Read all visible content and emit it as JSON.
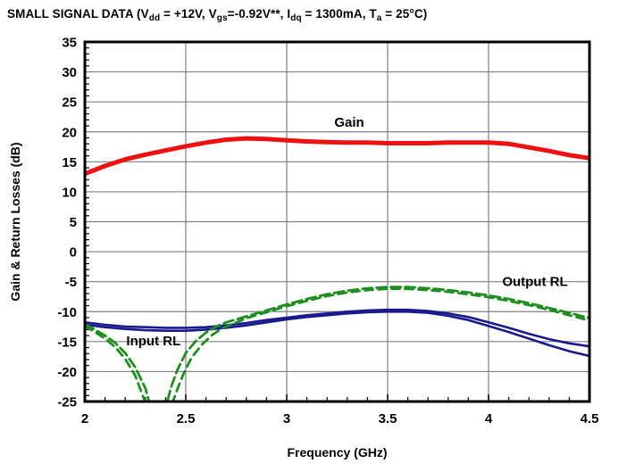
{
  "page": {
    "background": "#ffffff",
    "frame_color": "#000000",
    "grid_color": "#808080",
    "text_color": "#000000"
  },
  "title": {
    "segments": [
      {
        "t": "SMALL SIGNAL DATA (V"
      },
      {
        "t": "dd",
        "sub": true
      },
      {
        "t": " = +12V, V"
      },
      {
        "t": "gs",
        "sub": true
      },
      {
        "t": "=-0.92V**, I"
      },
      {
        "t": "dq",
        "sub": true
      },
      {
        "t": " = 1300mA, T"
      },
      {
        "t": "a",
        "sub": true
      },
      {
        "t": " = 25°C)"
      }
    ]
  },
  "chart_data": {
    "type": "line",
    "title": "SMALL SIGNAL DATA (Vdd = +12V, Vgs=-0.92V**, Idq = 1300mA, Ta = 25°C)",
    "xlabel": "Frequency (GHz)",
    "ylabel": "Gain & Return Losses (dB)",
    "xlim": [
      2,
      4.5
    ],
    "ylim": [
      -25,
      35
    ],
    "xticks": [
      2,
      2.5,
      3,
      3.5,
      4,
      4.5
    ],
    "xtick_labels": [
      "2",
      "2.5",
      "3",
      "3.5",
      "4",
      "4.5"
    ],
    "yticks": [
      35,
      30,
      25,
      20,
      15,
      10,
      5,
      0,
      -5,
      -10,
      -15,
      -20,
      -25
    ],
    "x_minor_step": 0.1,
    "y_minor_step": 1,
    "grid": true,
    "legend_position": "none",
    "series": [
      {
        "name": "Gain",
        "color": "#ee1111",
        "width": 5,
        "dash": null,
        "x": [
          2.0,
          2.1,
          2.2,
          2.3,
          2.4,
          2.5,
          2.6,
          2.7,
          2.8,
          2.9,
          3.0,
          3.1,
          3.2,
          3.3,
          3.4,
          3.5,
          3.6,
          3.7,
          3.8,
          3.9,
          4.0,
          4.1,
          4.2,
          4.3,
          4.4,
          4.5
        ],
        "y": [
          13.0,
          14.3,
          15.4,
          16.2,
          16.9,
          17.6,
          18.2,
          18.7,
          18.9,
          18.8,
          18.6,
          18.4,
          18.3,
          18.2,
          18.2,
          18.1,
          18.1,
          18.1,
          18.2,
          18.2,
          18.2,
          18.0,
          17.4,
          16.8,
          16.1,
          15.6
        ]
      },
      {
        "name": "Input RL (trace 1)",
        "color": "#1a1a8e",
        "width": 2.6,
        "dash": null,
        "x": [
          2.0,
          2.1,
          2.2,
          2.3,
          2.4,
          2.5,
          2.6,
          2.7,
          2.8,
          2.9,
          3.0,
          3.1,
          3.2,
          3.3,
          3.4,
          3.5,
          3.6,
          3.7,
          3.8,
          3.9,
          4.0,
          4.1,
          4.2,
          4.3,
          4.4,
          4.5
        ],
        "y": [
          -11.8,
          -12.2,
          -12.5,
          -12.6,
          -12.7,
          -12.7,
          -12.6,
          -12.3,
          -11.9,
          -11.4,
          -11.0,
          -10.6,
          -10.3,
          -10.0,
          -9.8,
          -9.7,
          -9.7,
          -9.9,
          -10.3,
          -10.9,
          -11.8,
          -12.7,
          -13.7,
          -14.6,
          -15.3,
          -15.8
        ]
      },
      {
        "name": "Input RL (trace 2)",
        "color": "#1a1a8e",
        "width": 2.6,
        "dash": null,
        "x": [
          2.0,
          2.1,
          2.2,
          2.3,
          2.4,
          2.5,
          2.6,
          2.7,
          2.8,
          2.9,
          3.0,
          3.1,
          3.2,
          3.3,
          3.4,
          3.5,
          3.6,
          3.7,
          3.8,
          3.9,
          4.0,
          4.1,
          4.2,
          4.3,
          4.4,
          4.5
        ],
        "y": [
          -12.2,
          -12.6,
          -12.9,
          -13.1,
          -13.2,
          -13.2,
          -13.0,
          -12.7,
          -12.3,
          -11.8,
          -11.3,
          -10.9,
          -10.6,
          -10.3,
          -10.1,
          -10.0,
          -10.0,
          -10.2,
          -10.7,
          -11.4,
          -12.4,
          -13.4,
          -14.5,
          -15.6,
          -16.6,
          -17.4
        ]
      },
      {
        "name": "Output RL (trace 1)",
        "color": "#1f8f1f",
        "width": 2.8,
        "dash": "11,5",
        "x": [
          2.0,
          2.05,
          2.1,
          2.15,
          2.2,
          2.25,
          2.3,
          2.33,
          2.36,
          2.4,
          2.43,
          2.46,
          2.5,
          2.55,
          2.6,
          2.65,
          2.7,
          2.8,
          2.9,
          3.0,
          3.1,
          3.2,
          3.3,
          3.4,
          3.5,
          3.6,
          3.7,
          3.8,
          3.9,
          4.0,
          4.1,
          4.2,
          4.3,
          4.4,
          4.5
        ],
        "y": [
          -12.1,
          -13.0,
          -14.0,
          -15.2,
          -16.9,
          -19.3,
          -22.8,
          -26.5,
          -29.0,
          -26.0,
          -22.3,
          -19.6,
          -16.9,
          -14.9,
          -13.5,
          -12.5,
          -11.8,
          -10.8,
          -9.8,
          -8.8,
          -7.9,
          -7.1,
          -6.5,
          -6.1,
          -5.9,
          -5.9,
          -6.1,
          -6.4,
          -6.8,
          -7.3,
          -7.9,
          -8.6,
          -9.4,
          -10.2,
          -11.1
        ]
      },
      {
        "name": "Output RL (trace 2)",
        "color": "#1f8f1f",
        "width": 2.8,
        "dash": "9,6",
        "x": [
          2.0,
          2.05,
          2.1,
          2.15,
          2.2,
          2.25,
          2.3,
          2.34,
          2.38,
          2.42,
          2.46,
          2.49,
          2.53,
          2.58,
          2.63,
          2.68,
          2.73,
          2.8,
          2.9,
          3.0,
          3.1,
          3.2,
          3.3,
          3.4,
          3.5,
          3.6,
          3.7,
          3.8,
          3.9,
          4.0,
          4.1,
          4.2,
          4.3,
          4.4,
          4.5
        ],
        "y": [
          -12.4,
          -13.4,
          -14.5,
          -15.9,
          -17.9,
          -20.7,
          -25.2,
          -29.0,
          -29.5,
          -26.5,
          -22.8,
          -20.3,
          -17.6,
          -15.5,
          -13.9,
          -12.8,
          -12.1,
          -11.1,
          -10.1,
          -9.1,
          -8.2,
          -7.4,
          -6.8,
          -6.4,
          -6.2,
          -6.2,
          -6.4,
          -6.7,
          -7.1,
          -7.6,
          -8.2,
          -8.9,
          -9.7,
          -10.6,
          -11.5
        ]
      }
    ],
    "annotations": [
      {
        "text": "Gain",
        "x": 3.31,
        "y": 21.6
      },
      {
        "text": "Input RL",
        "x": 2.34,
        "y": -14.9
      },
      {
        "text": "Output RL",
        "x": 4.23,
        "y": -5.0
      }
    ]
  }
}
